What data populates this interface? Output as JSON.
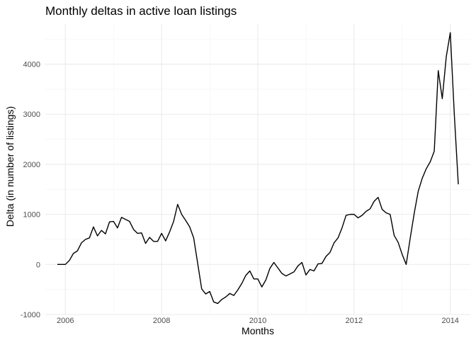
{
  "chart_data": {
    "type": "line",
    "title": "Monthly deltas in active loan listings",
    "xlabel": "Months",
    "ylabel": "Delta (in number of listings)",
    "xlim": [
      "2005-08-01",
      "2014-06-01"
    ],
    "ylim": [
      -1000,
      4800
    ],
    "grid": true,
    "x_ticks": [
      {
        "value": "2006-01-01",
        "label": "2006"
      },
      {
        "value": "2008-01-01",
        "label": "2008"
      },
      {
        "value": "2010-01-01",
        "label": "2010"
      },
      {
        "value": "2012-01-01",
        "label": "2012"
      },
      {
        "value": "2014-01-01",
        "label": "2014"
      }
    ],
    "x_minor_ticks": [
      "2007-01-01",
      "2009-01-01",
      "2011-01-01",
      "2013-01-01"
    ],
    "y_ticks": [
      {
        "value": -1000,
        "label": "-1000"
      },
      {
        "value": 0,
        "label": "0"
      },
      {
        "value": 1000,
        "label": "1000"
      },
      {
        "value": 2000,
        "label": "2000"
      },
      {
        "value": 3000,
        "label": "3000"
      },
      {
        "value": 4000,
        "label": "4000"
      }
    ],
    "y_minor_ticks": [
      -500,
      500,
      1500,
      2500,
      3500,
      4500
    ],
    "series": [
      {
        "color": "#000000",
        "x": [
          "2005-11",
          "2005-12",
          "2006-01",
          "2006-02",
          "2006-03",
          "2006-04",
          "2006-05",
          "2006-06",
          "2006-07",
          "2006-08",
          "2006-09",
          "2006-10",
          "2006-11",
          "2006-12",
          "2007-01",
          "2007-02",
          "2007-03",
          "2007-04",
          "2007-05",
          "2007-06",
          "2007-07",
          "2007-08",
          "2007-09",
          "2007-10",
          "2007-11",
          "2007-12",
          "2008-01",
          "2008-02",
          "2008-03",
          "2008-04",
          "2008-05",
          "2008-06",
          "2008-07",
          "2008-08",
          "2008-09",
          "2008-10",
          "2008-11",
          "2008-12",
          "2009-01",
          "2009-02",
          "2009-03",
          "2009-04",
          "2009-05",
          "2009-06",
          "2009-07",
          "2009-08",
          "2009-09",
          "2009-10",
          "2009-11",
          "2009-12",
          "2010-01",
          "2010-02",
          "2010-03",
          "2010-04",
          "2010-05",
          "2010-06",
          "2010-07",
          "2010-08",
          "2010-09",
          "2010-10",
          "2010-11",
          "2010-12",
          "2011-01",
          "2011-02",
          "2011-03",
          "2011-04",
          "2011-05",
          "2011-06",
          "2011-07",
          "2011-08",
          "2011-09",
          "2011-10",
          "2011-11",
          "2011-12",
          "2012-01",
          "2012-02",
          "2012-03",
          "2012-04",
          "2012-05",
          "2012-06",
          "2012-07",
          "2012-08",
          "2012-09",
          "2012-10",
          "2012-11",
          "2012-12",
          "2013-01",
          "2013-02",
          "2013-03",
          "2013-04",
          "2013-05",
          "2013-06",
          "2013-07",
          "2013-08",
          "2013-09",
          "2013-10",
          "2013-11",
          "2013-12",
          "2014-01",
          "2014-02",
          "2014-03"
        ],
        "y": [
          0,
          0,
          0,
          80,
          220,
          270,
          430,
          500,
          530,
          750,
          570,
          680,
          610,
          850,
          860,
          730,
          940,
          900,
          860,
          700,
          620,
          630,
          420,
          540,
          460,
          460,
          620,
          470,
          650,
          860,
          1200,
          1000,
          880,
          750,
          530,
          20,
          -490,
          -590,
          -540,
          -750,
          -780,
          -700,
          -650,
          -580,
          -620,
          -510,
          -380,
          -220,
          -130,
          -290,
          -290,
          -450,
          -310,
          -80,
          40,
          -70,
          -180,
          -230,
          -190,
          -150,
          -30,
          40,
          -210,
          -100,
          -130,
          10,
          20,
          160,
          240,
          430,
          530,
          730,
          980,
          1000,
          1000,
          930,
          980,
          1060,
          1110,
          1260,
          1340,
          1100,
          1030,
          1000,
          580,
          440,
          200,
          0,
          520,
          1020,
          1460,
          1720,
          1910,
          2050,
          2260,
          3870,
          3310,
          4150,
          4630,
          3000,
          1600
        ]
      }
    ]
  }
}
